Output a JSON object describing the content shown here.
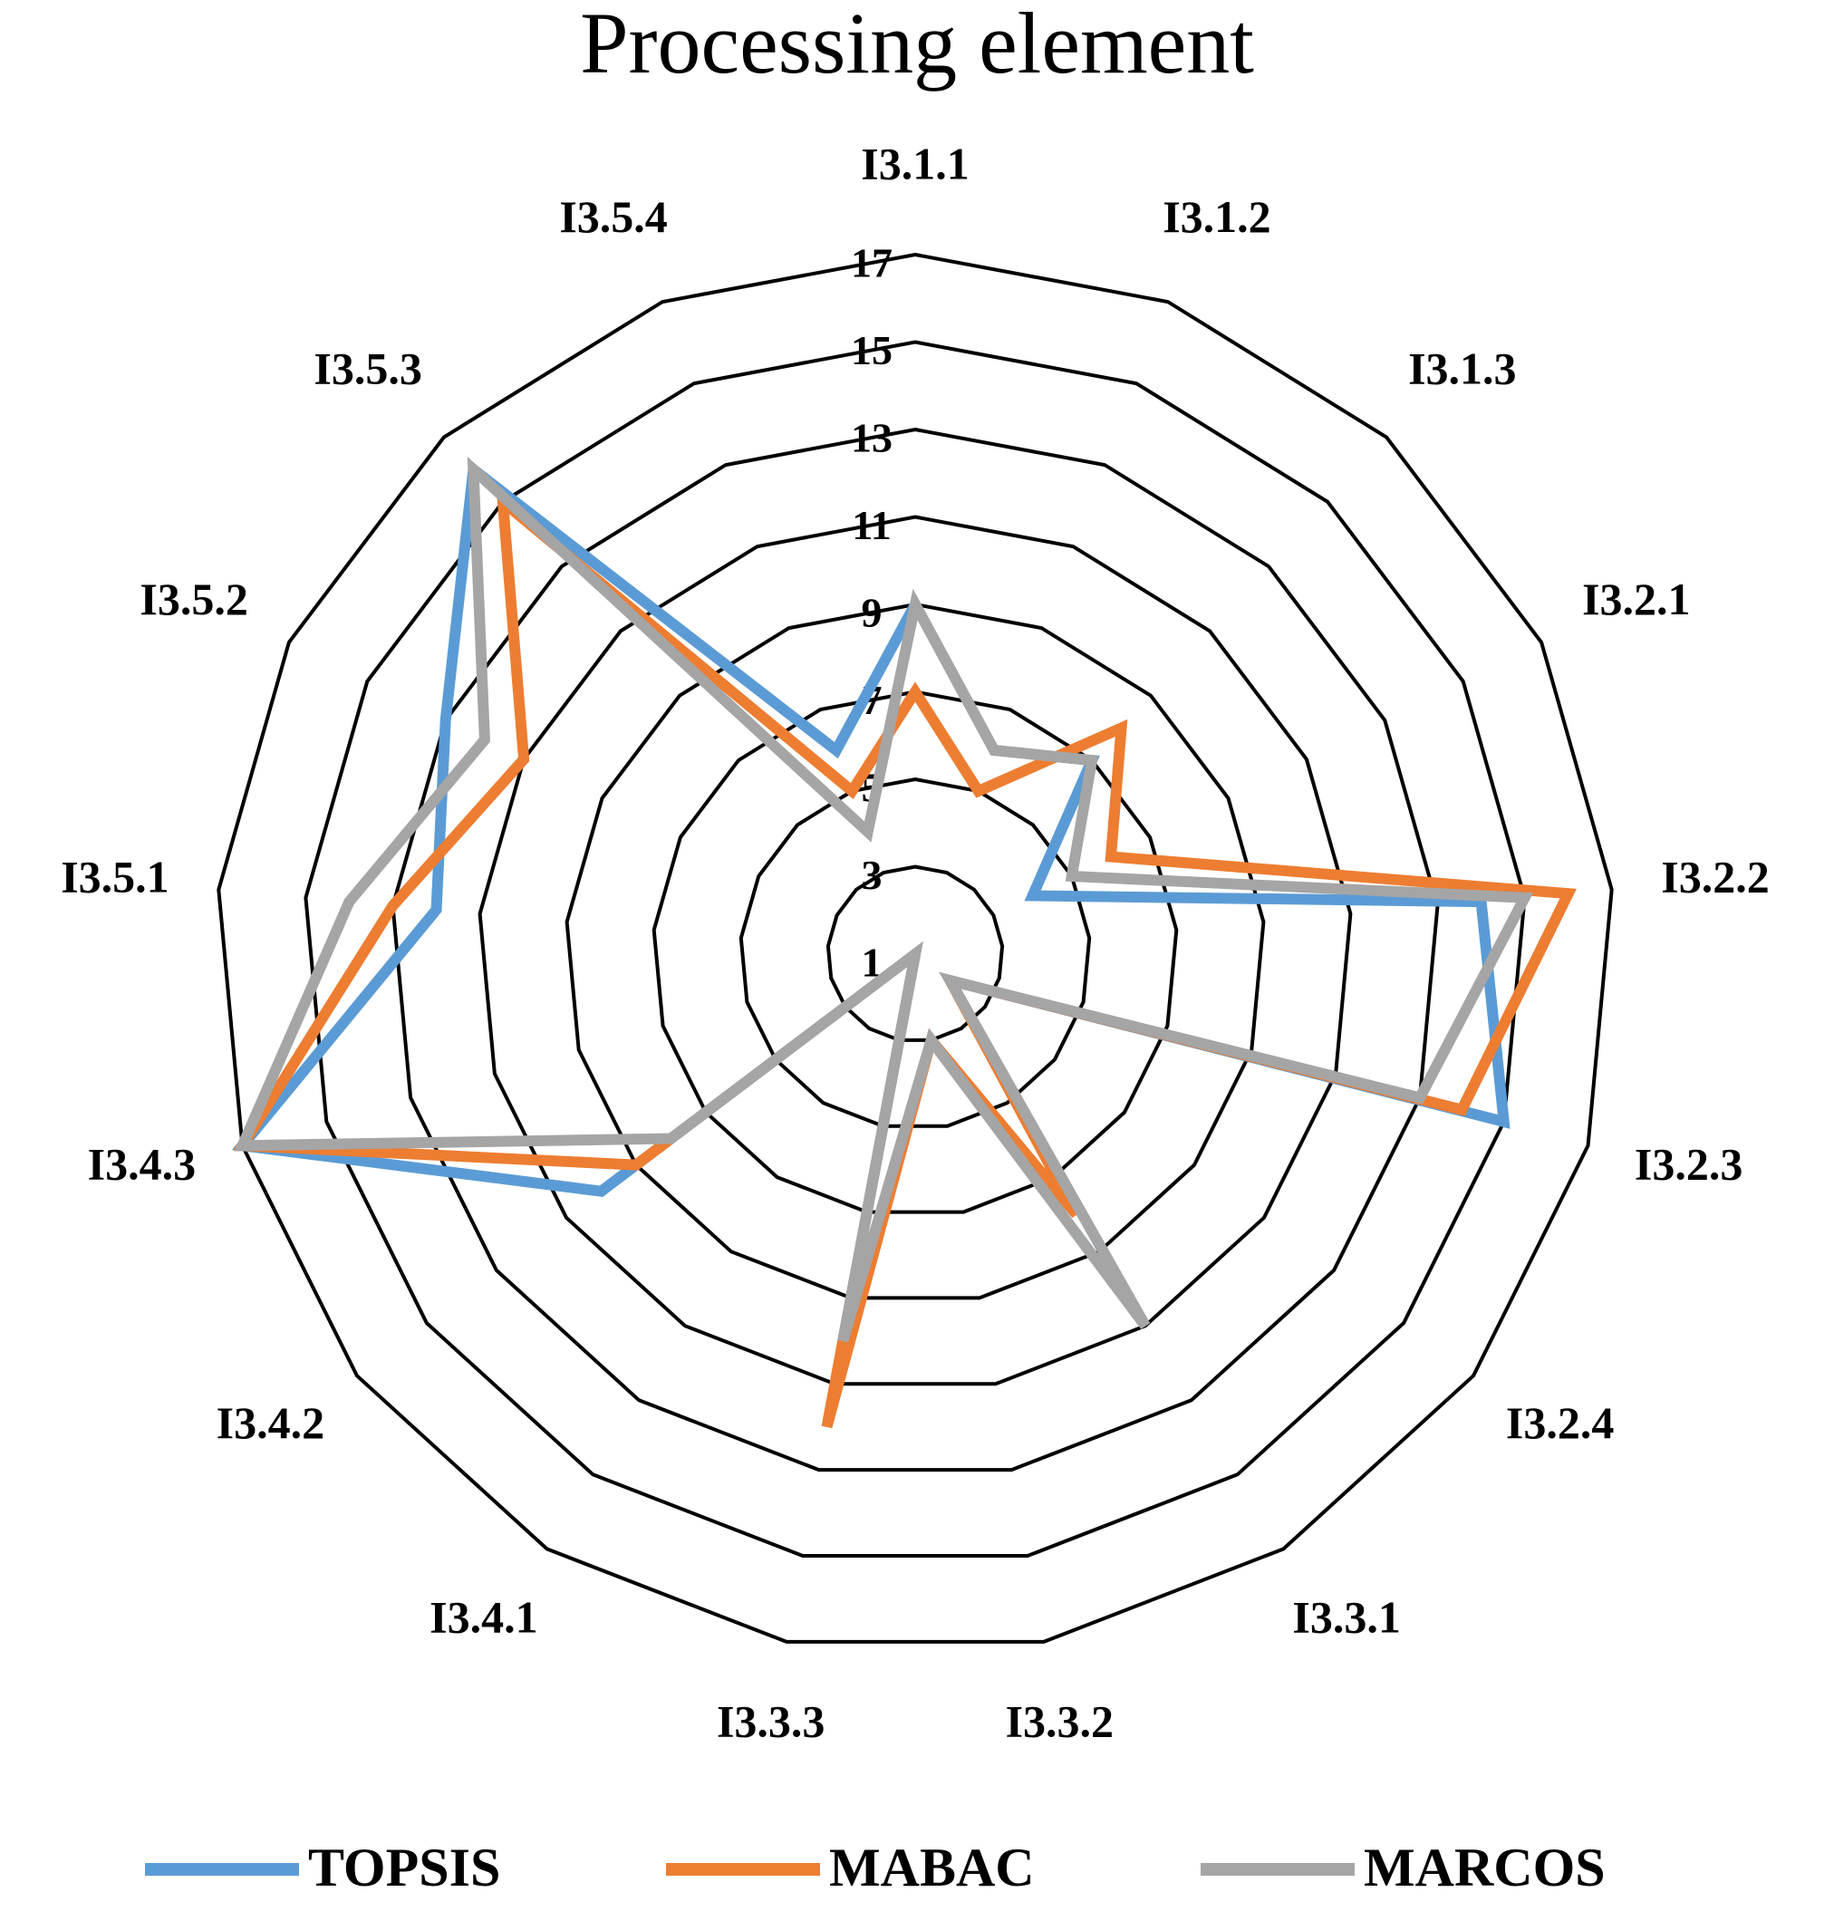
{
  "chart_data": {
    "type": "radar",
    "title": "Processing  element",
    "categories": [
      "I3.1.1",
      "I3.1.2",
      "I3.1.3",
      "I3.2.1",
      "I3.2.2",
      "I3.2.3",
      "I3.2.4",
      "I3.3.1",
      "I3.3.2",
      "I3.3.3",
      "I3.4.1",
      "I3.4.2",
      "I3.4.3",
      "I3.5.1",
      "I3.5.2",
      "I3.5.3",
      "I3.5.4"
    ],
    "ylim": [
      1,
      17
    ],
    "yticks": [
      1,
      3,
      5,
      7,
      9,
      11,
      13,
      15,
      17
    ],
    "grid": true,
    "series": [
      {
        "name": "TOPSIS",
        "color": "#5b9bd5",
        "values": [
          9,
          6,
          7,
          4,
          14,
          15,
          2,
          11,
          3,
          10,
          1,
          10,
          17,
          12,
          13,
          16,
          6
        ]
      },
      {
        "name": "MABAC",
        "color": "#ed7d31",
        "values": [
          7,
          5,
          8,
          6,
          16,
          14,
          2,
          8,
          3,
          12,
          1,
          9,
          17,
          13,
          11,
          15,
          5
        ]
      },
      {
        "name": "MARCOS",
        "color": "#a5a5a5",
        "values": [
          9,
          6,
          7,
          5,
          15,
          13,
          2,
          11,
          3,
          10,
          1,
          8,
          17,
          14,
          12,
          16,
          4
        ]
      }
    ]
  }
}
